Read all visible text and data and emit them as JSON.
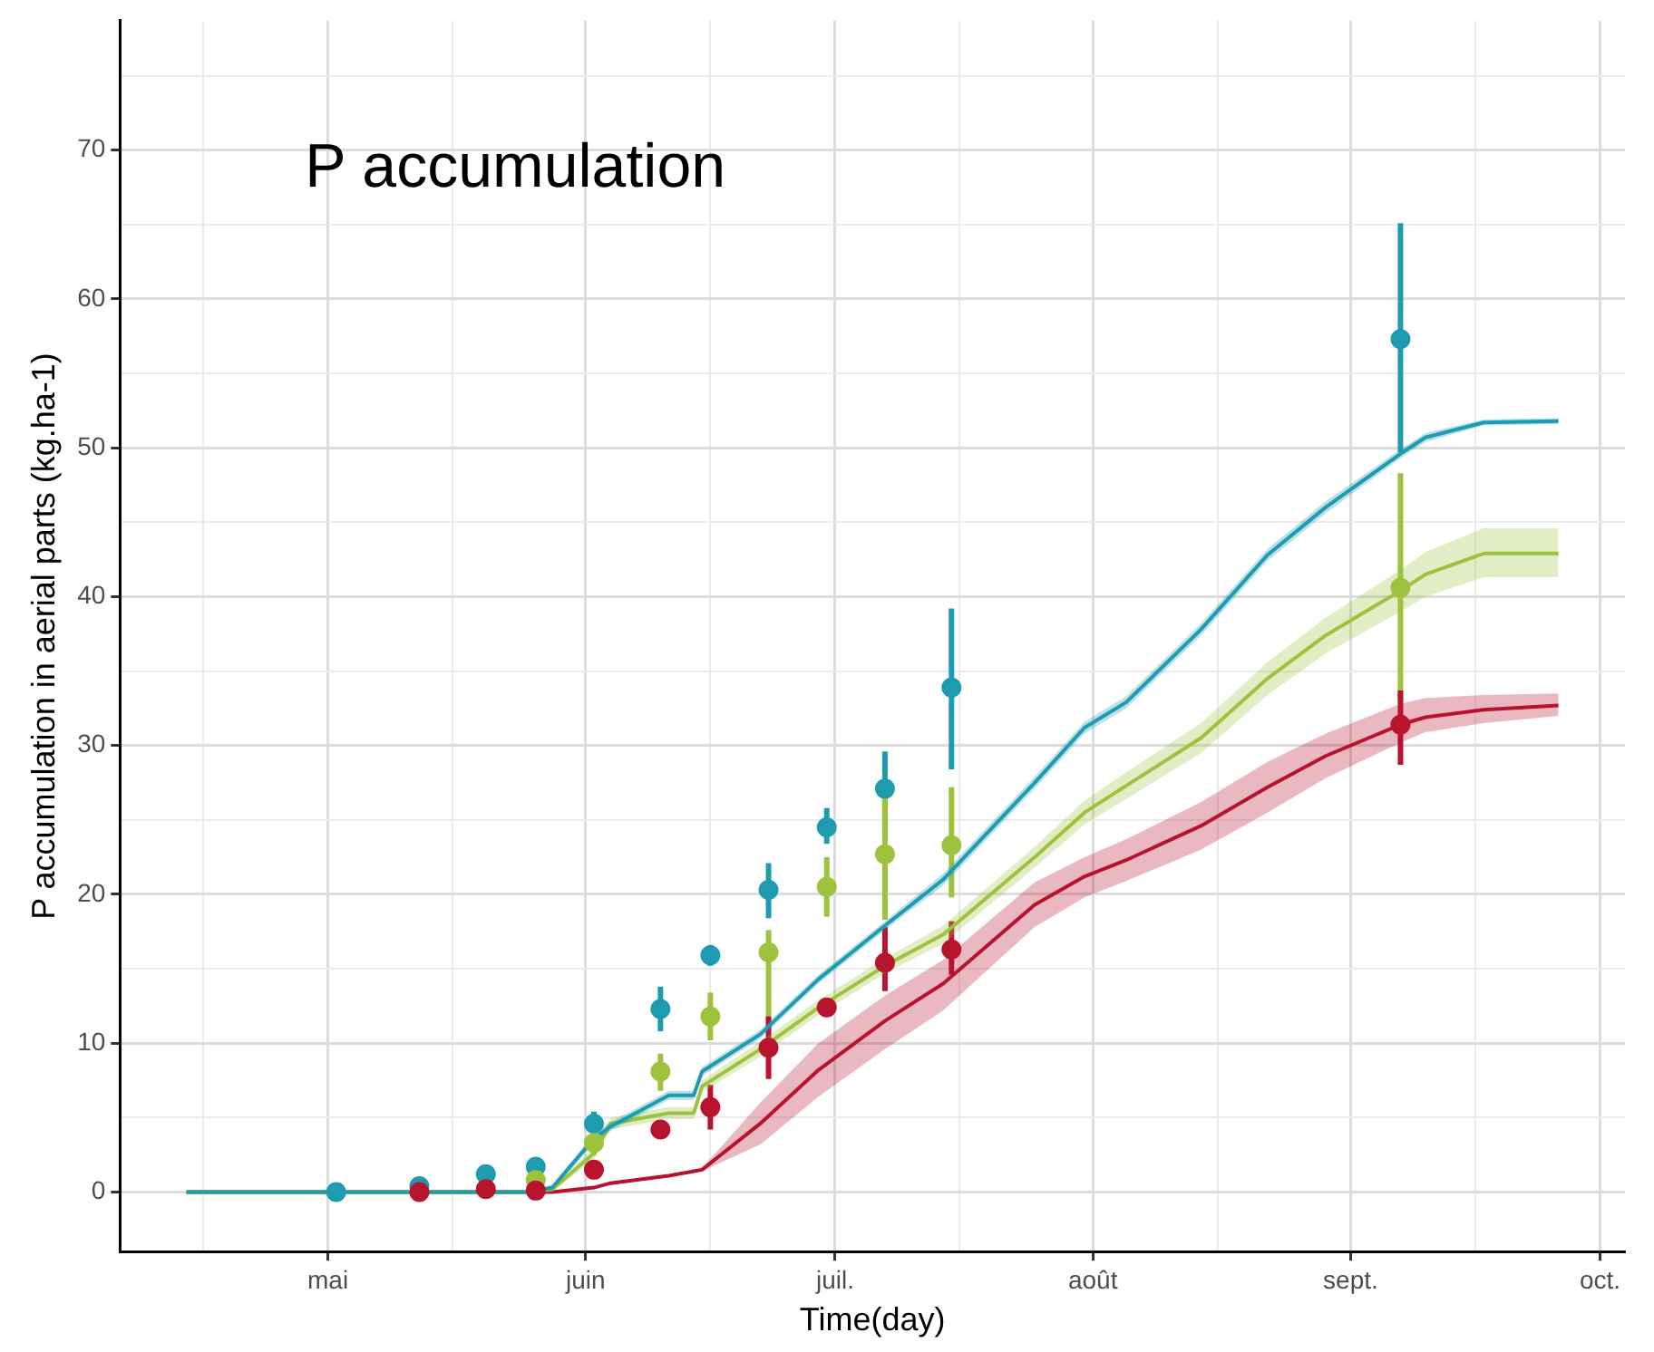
{
  "chart_data": {
    "type": "line",
    "title": "P accumulation",
    "xlabel": "Time(day)",
    "ylabel": "P accumulation in aerial parts (kg.ha-1)",
    "xlim": [
      "--04-06",
      "--10-04"
    ],
    "xticks": [
      {
        "value": "--04-16",
        "label": null
      },
      {
        "value": "--05-01",
        "label": "mai"
      },
      {
        "value": "--05-16",
        "label": null
      },
      {
        "value": "--06-01",
        "label": "juin"
      },
      {
        "value": "--06-16",
        "label": null
      },
      {
        "value": "--07-01",
        "label": "juil."
      },
      {
        "value": "--07-16",
        "label": null
      },
      {
        "value": "--08-01",
        "label": "août"
      },
      {
        "value": "--08-16",
        "label": null
      },
      {
        "value": "--09-01",
        "label": "sept."
      },
      {
        "value": "--09-16",
        "label": null
      },
      {
        "value": "--10-01",
        "label": "oct."
      }
    ],
    "ylim": [
      -4,
      78.7
    ],
    "yticks": [
      0,
      {
        "value": 5,
        "label": null
      },
      10,
      {
        "value": 15,
        "label": null
      },
      20,
      {
        "value": 25,
        "label": null
      },
      30,
      {
        "value": 35,
        "label": null
      },
      40,
      {
        "value": 45,
        "label": null
      },
      50,
      {
        "value": 55,
        "label": null
      },
      60,
      {
        "value": 65,
        "label": null
      },
      70,
      {
        "value": 75,
        "label": null
      }
    ],
    "grid": true,
    "legend": false,
    "series": [
      {
        "color": "#1f9bb0",
        "marker": "none",
        "x": [
          "--04-14",
          "--05-25",
          "--05-28",
          "--06-02",
          "--06-04",
          "--06-11",
          "--06-14",
          "--06-15",
          "--06-22",
          "--06-29",
          "--07-07",
          "--07-14",
          "--07-25",
          "--07-31",
          "--08-05",
          "--08-14",
          "--08-22",
          "--08-29",
          "--09-07",
          "--09-10",
          "--09-17",
          "--09-26"
        ],
        "values": [
          0,
          0,
          0.3,
          3.6,
          4.4,
          6.5,
          6.5,
          8.1,
          10.6,
          14.3,
          17.9,
          21,
          27.5,
          31.2,
          32.9,
          37.8,
          42.8,
          46,
          49.6,
          50.7,
          51.7,
          51.8
        ],
        "lower": [
          0,
          0,
          0.1,
          3.3,
          4.1,
          6.2,
          6.2,
          7.8,
          10.3,
          14,
          17.6,
          20.6,
          27.1,
          30.8,
          32.5,
          37.4,
          42.4,
          45.6,
          49.3,
          50.4,
          51.5,
          51.6
        ],
        "upper": [
          0,
          0,
          0.5,
          3.9,
          4.7,
          6.8,
          6.8,
          8.4,
          10.9,
          14.6,
          18.2,
          21.4,
          27.9,
          31.6,
          33.3,
          38.2,
          43.2,
          46.4,
          49.9,
          51,
          51.9,
          52
        ]
      },
      {
        "color": "#9dc23e",
        "marker": "none",
        "x": [
          "--04-14",
          "--05-25",
          "--05-28",
          "--06-02",
          "--06-04",
          "--06-11",
          "--06-14",
          "--06-15",
          "--06-22",
          "--06-29",
          "--07-07",
          "--07-14",
          "--07-25",
          "--07-31",
          "--08-05",
          "--08-14",
          "--08-22",
          "--08-29",
          "--09-07",
          "--09-10",
          "--09-17",
          "--09-26"
        ],
        "values": [
          0,
          0,
          0.2,
          2.6,
          4.6,
          5.3,
          5.3,
          7.1,
          9.6,
          12.4,
          15.2,
          17.3,
          22.5,
          25.5,
          27.3,
          30.5,
          34.5,
          37.4,
          40.4,
          41.5,
          42.9,
          42.9
        ],
        "lower": [
          0,
          0,
          0,
          2.2,
          4.2,
          4.9,
          4.9,
          6.7,
          9.1,
          11.9,
          14.7,
          16.7,
          21.8,
          24.7,
          26.4,
          29.5,
          33.4,
          36.2,
          39,
          40,
          41.3,
          41.3
        ],
        "upper": [
          0,
          0,
          0.4,
          3,
          5,
          5.7,
          5.7,
          7.5,
          10.1,
          12.9,
          15.7,
          17.9,
          23.2,
          26.3,
          28.2,
          31.5,
          35.6,
          38.6,
          41.8,
          43,
          44.6,
          44.6
        ]
      },
      {
        "color": "#b8142e",
        "marker": "none",
        "x": [
          "--04-14",
          "--05-25",
          "--05-28",
          "--06-02",
          "--06-04",
          "--06-11",
          "--06-14",
          "--06-15",
          "--06-22",
          "--06-29",
          "--07-07",
          "--07-14",
          "--07-25",
          "--07-31",
          "--08-05",
          "--08-14",
          "--08-22",
          "--08-29",
          "--09-07",
          "--09-10",
          "--09-17",
          "--09-26"
        ],
        "values": [
          0,
          0,
          0,
          0.3,
          0.6,
          1.1,
          1.4,
          1.5,
          4.6,
          8.2,
          11.5,
          14,
          19.3,
          21.2,
          22.3,
          24.6,
          27.2,
          29.3,
          31.4,
          31.9,
          32.4,
          32.7
        ],
        "lower": [
          0,
          0,
          0,
          0.2,
          0.5,
          1,
          1.3,
          1.4,
          3.2,
          6.4,
          9.6,
          12.2,
          17.8,
          19.8,
          20.9,
          23,
          25.5,
          27.8,
          30.2,
          30.9,
          31.5,
          32
        ],
        "upper": [
          0,
          0,
          0,
          0.4,
          0.7,
          1.2,
          1.5,
          1.6,
          6,
          10,
          13.2,
          15.6,
          20.8,
          22.5,
          23.7,
          26.2,
          28.9,
          30.8,
          32.8,
          33.2,
          33.4,
          33.5
        ]
      },
      {
        "type": "scatter",
        "color": "#1f9bb0",
        "marker": "circle",
        "x": [
          "--05-02",
          "--05-12",
          "--05-20",
          "--05-26",
          "--06-02",
          "--06-10",
          "--06-16",
          "--06-23",
          "--06-30",
          "--07-07",
          "--07-15",
          "--09-07"
        ],
        "values": [
          0,
          0.4,
          1.2,
          1.7,
          4.6,
          12.3,
          15.9,
          20.3,
          24.5,
          27.1,
          33.9,
          57.3
        ],
        "errors": [
          null,
          null,
          null,
          null,
          [
            4,
            5.4
          ],
          [
            10.8,
            13.8
          ],
          [
            15.2,
            16.6
          ],
          [
            18.4,
            22.1
          ],
          [
            23.4,
            25.8
          ],
          [
            24.2,
            29.6
          ],
          [
            28.4,
            39.2
          ],
          [
            49.7,
            65.1
          ]
        ]
      },
      {
        "type": "scatter",
        "color": "#9dc23e",
        "marker": "circle",
        "x": [
          "--05-26",
          "--06-02",
          "--06-10",
          "--06-16",
          "--06-23",
          "--06-30",
          "--07-07",
          "--07-15",
          "--09-07"
        ],
        "values": [
          0.8,
          3.3,
          8.1,
          11.8,
          16.1,
          20.5,
          22.7,
          23.3,
          40.6
        ],
        "errors": [
          null,
          [
            2.5,
            4
          ],
          [
            6.8,
            9.3
          ],
          [
            10.2,
            13.4
          ],
          [
            11.6,
            17.6
          ],
          [
            18.5,
            22.5
          ],
          [
            18.3,
            26.5
          ],
          [
            19.8,
            27.2
          ],
          [
            33,
            48.3
          ]
        ]
      },
      {
        "type": "scatter",
        "color": "#b8142e",
        "marker": "circle",
        "x": [
          "--05-12",
          "--05-20",
          "--05-26",
          "--06-02",
          "--06-10",
          "--06-16",
          "--06-23",
          "--06-30",
          "--07-07",
          "--07-15",
          "--09-07"
        ],
        "values": [
          0,
          0.2,
          0.1,
          1.5,
          4.2,
          5.7,
          9.7,
          12.4,
          15.4,
          16.3,
          31.4
        ],
        "errors": [
          null,
          null,
          null,
          [
            1,
            2
          ],
          [
            3.6,
            4.8
          ],
          [
            4.2,
            7.2
          ],
          [
            7.6,
            11.8
          ],
          null,
          [
            13.5,
            17.8
          ],
          [
            14.6,
            18.2
          ],
          [
            28.7,
            33.7
          ]
        ]
      }
    ]
  }
}
